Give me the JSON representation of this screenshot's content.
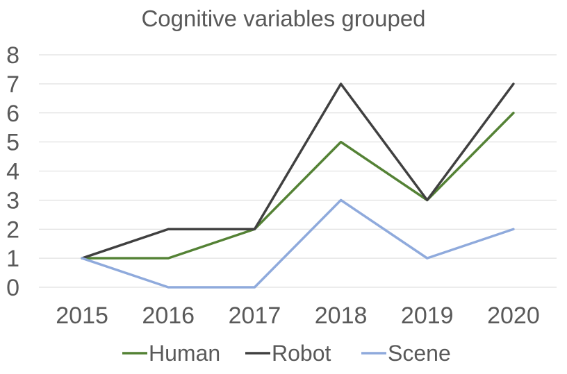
{
  "chart_data": {
    "type": "line",
    "title": "Cognitive variables grouped",
    "xlabel": "",
    "ylabel": "",
    "categories": [
      "2015",
      "2016",
      "2017",
      "2018",
      "2019",
      "2020"
    ],
    "ylim": [
      0,
      8
    ],
    "yticks": [
      "0",
      "1",
      "2",
      "3",
      "4",
      "5",
      "6",
      "7",
      "8"
    ],
    "grid": true,
    "legend_position": "bottom",
    "series": [
      {
        "name": "Human",
        "color": "#548235",
        "values": [
          1,
          1,
          2,
          5,
          3,
          6
        ]
      },
      {
        "name": "Robot",
        "color": "#404040",
        "values": [
          1,
          2,
          2,
          7,
          3,
          7
        ]
      },
      {
        "name": "Scene",
        "color": "#8FAADC",
        "values": [
          1,
          0,
          0,
          3,
          1,
          2
        ]
      }
    ]
  }
}
